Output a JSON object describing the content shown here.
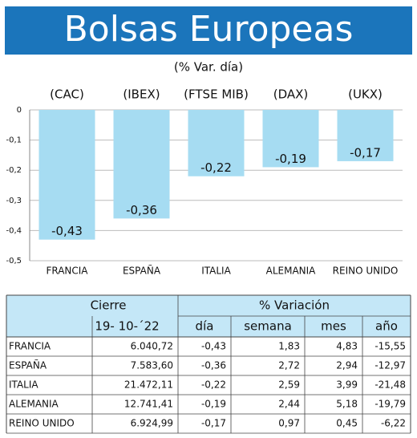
{
  "chart_data": {
    "type": "bar",
    "title": "Bolsas Europeas",
    "subtitle": "(% Var. día)",
    "indices": [
      "(CAC)",
      "(IBEX)",
      "(FTSE MIB)",
      "(DAX)",
      "(UKX)"
    ],
    "categories": [
      "FRANCIA",
      "ESPAÑA",
      "ITALIA",
      "ALEMANIA",
      "REINO UNIDO"
    ],
    "values": [
      -0.43,
      -0.36,
      -0.22,
      -0.19,
      -0.17
    ],
    "value_labels": [
      "-0,43",
      "-0,36",
      "-0,22",
      "-0,19",
      "-0,17"
    ],
    "color": "#a6dcf2",
    "ylim": [
      -0.5,
      0
    ],
    "yticks": [
      0,
      {
        "value": -0.1,
        "label": "-0,1"
      },
      {
        "value": -0.2,
        "label": "-0,2"
      },
      {
        "value": -0.3,
        "label": "-0,3"
      },
      {
        "value": -0.4,
        "label": "-0,4"
      },
      {
        "value": -0.5,
        "label": "-0,5"
      }
    ],
    "grid": true
  },
  "table": {
    "header": [
      "Cierre",
      "% Variación"
    ],
    "subheader": [
      "19- 10-´22",
      "día",
      "semana",
      "mes",
      "año"
    ],
    "rows": [
      [
        "FRANCIA",
        "6.040,72",
        "-0,43",
        "1,83",
        "4,83",
        "-15,55"
      ],
      [
        "ESPAÑA",
        "7.583,60",
        "-0,36",
        "2,72",
        "2,94",
        "-12,97"
      ],
      [
        "ITALIA",
        "21.472,11",
        "-0,22",
        "2,59",
        "3,99",
        "-21,48"
      ],
      [
        "ALEMANIA",
        "12.741,41",
        "-0,19",
        "2,44",
        "5,18",
        "-19,79"
      ],
      [
        "REINO UNIDO",
        "6.924,99",
        "-0,17",
        "0,97",
        "0,45",
        "-6,22"
      ]
    ]
  }
}
